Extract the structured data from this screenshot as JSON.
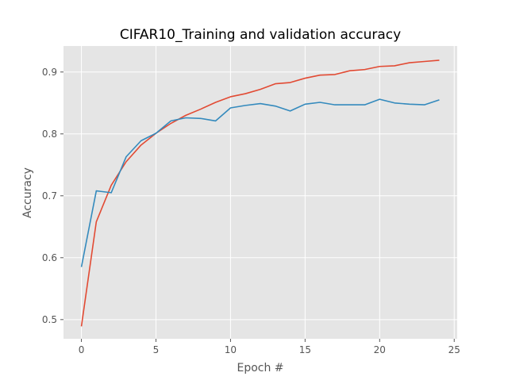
{
  "chart_data": {
    "type": "line",
    "title": "CIFAR10_Training and validation accuracy",
    "xlabel": "Epoch #",
    "ylabel": "Accuracy",
    "xlim": [
      -1.2,
      25.2
    ],
    "ylim": [
      0.469,
      0.942
    ],
    "xticks": [
      0,
      5,
      10,
      15,
      20,
      25
    ],
    "yticks": [
      0.5,
      0.6,
      0.7,
      0.8,
      0.9
    ],
    "grid": true,
    "legend": "none",
    "x": [
      0,
      1,
      2,
      3,
      4,
      5,
      6,
      7,
      8,
      9,
      10,
      11,
      12,
      13,
      14,
      15,
      16,
      17,
      18,
      19,
      20,
      21,
      22,
      23,
      24
    ],
    "series": [
      {
        "color": "#E24A33",
        "values": [
          0.489,
          0.658,
          0.717,
          0.755,
          0.782,
          0.801,
          0.817,
          0.83,
          0.84,
          0.851,
          0.86,
          0.865,
          0.872,
          0.881,
          0.883,
          0.89,
          0.895,
          0.896,
          0.902,
          0.904,
          0.909,
          0.91,
          0.915,
          0.917,
          0.919
        ]
      },
      {
        "color": "#348ABD",
        "values": [
          0.585,
          0.708,
          0.705,
          0.763,
          0.789,
          0.801,
          0.821,
          0.826,
          0.825,
          0.821,
          0.842,
          0.846,
          0.849,
          0.845,
          0.837,
          0.848,
          0.851,
          0.847,
          0.847,
          0.847,
          0.856,
          0.85,
          0.848,
          0.847,
          0.855
        ]
      }
    ]
  }
}
